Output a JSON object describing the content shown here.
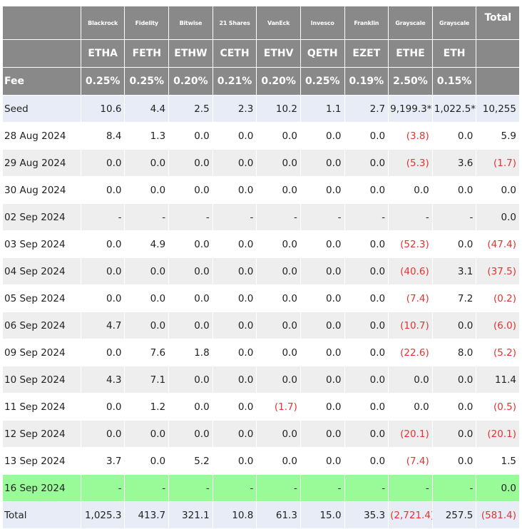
{
  "columns": [
    {
      "issuer": "Blackrock",
      "ticker": "ETHA",
      "fee": "0.25%"
    },
    {
      "issuer": "Fidelity",
      "ticker": "FETH",
      "fee": "0.25%"
    },
    {
      "issuer": "Bitwise",
      "ticker": "ETHW",
      "fee": "0.20%"
    },
    {
      "issuer": "21 Shares",
      "ticker": "CETH",
      "fee": "0.21%"
    },
    {
      "issuer": "VanEck",
      "ticker": "ETHV",
      "fee": "0.20%"
    },
    {
      "issuer": "Invesco",
      "ticker": "QETH",
      "fee": "0.25%"
    },
    {
      "issuer": "Franklin",
      "ticker": "EZET",
      "fee": "0.19%"
    },
    {
      "issuer": "Grayscale",
      "ticker": "ETHE",
      "fee": "2.50%"
    },
    {
      "issuer": "Grayscale",
      "ticker": "ETH",
      "fee": "0.15%"
    }
  ],
  "total_header": "Total",
  "fee_label": "Fee",
  "total_fee": "",
  "rows": [
    {
      "label": "Seed",
      "values": [
        "10.6",
        "4.4",
        "2.5",
        "2.3",
        "10.2",
        "1.1",
        "2.7",
        "9,199.3*",
        "1,022.5*"
      ],
      "total": "10,255",
      "style": "blue"
    },
    {
      "label": "28 Aug 2024",
      "values": [
        "8.4",
        "1.3",
        "0.0",
        "0.0",
        "0.0",
        "0.0",
        "0.0",
        "(3.8)",
        "0.0"
      ],
      "total": "5.9",
      "style": "white"
    },
    {
      "label": "29 Aug 2024",
      "values": [
        "0.0",
        "0.0",
        "0.0",
        "0.0",
        "0.0",
        "0.0",
        "0.0",
        "(5.3)",
        "3.6"
      ],
      "total": "(1.7)",
      "style": "grey"
    },
    {
      "label": "30 Aug 2024",
      "values": [
        "0.0",
        "0.0",
        "0.0",
        "0.0",
        "0.0",
        "0.0",
        "0.0",
        "0.0",
        "0.0"
      ],
      "total": "0.0",
      "style": "white"
    },
    {
      "label": "02 Sep 2024",
      "values": [
        "-",
        "-",
        "-",
        "-",
        "-",
        "-",
        "-",
        "-",
        "-"
      ],
      "total": "0.0",
      "style": "grey"
    },
    {
      "label": "03 Sep 2024",
      "values": [
        "0.0",
        "4.9",
        "0.0",
        "0.0",
        "0.0",
        "0.0",
        "0.0",
        "(52.3)",
        "0.0"
      ],
      "total": "(47.4)",
      "style": "white"
    },
    {
      "label": "04 Sep 2024",
      "values": [
        "0.0",
        "0.0",
        "0.0",
        "0.0",
        "0.0",
        "0.0",
        "0.0",
        "(40.6)",
        "3.1"
      ],
      "total": "(37.5)",
      "style": "grey"
    },
    {
      "label": "05 Sep 2024",
      "values": [
        "0.0",
        "0.0",
        "0.0",
        "0.0",
        "0.0",
        "0.0",
        "0.0",
        "(7.4)",
        "7.2"
      ],
      "total": "(0.2)",
      "style": "white"
    },
    {
      "label": "06 Sep 2024",
      "values": [
        "4.7",
        "0.0",
        "0.0",
        "0.0",
        "0.0",
        "0.0",
        "0.0",
        "(10.7)",
        "0.0"
      ],
      "total": "(6.0)",
      "style": "grey"
    },
    {
      "label": "09 Sep 2024",
      "values": [
        "0.0",
        "7.6",
        "1.8",
        "0.0",
        "0.0",
        "0.0",
        "0.0",
        "(22.6)",
        "8.0"
      ],
      "total": "(5.2)",
      "style": "white"
    },
    {
      "label": "10 Sep 2024",
      "values": [
        "4.3",
        "7.1",
        "0.0",
        "0.0",
        "0.0",
        "0.0",
        "0.0",
        "0.0",
        "0.0"
      ],
      "total": "11.4",
      "style": "grey"
    },
    {
      "label": "11 Sep 2024",
      "values": [
        "0.0",
        "1.2",
        "0.0",
        "0.0",
        "(1.7)",
        "0.0",
        "0.0",
        "0.0",
        "0.0"
      ],
      "total": "(0.5)",
      "style": "white"
    },
    {
      "label": "12 Sep 2024",
      "values": [
        "0.0",
        "0.0",
        "0.0",
        "0.0",
        "0.0",
        "0.0",
        "0.0",
        "(20.1)",
        "0.0"
      ],
      "total": "(20.1)",
      "style": "grey"
    },
    {
      "label": "13 Sep 2024",
      "values": [
        "3.7",
        "0.0",
        "5.2",
        "0.0",
        "0.0",
        "0.0",
        "0.0",
        "(7.4)",
        "0.0"
      ],
      "total": "1.5",
      "style": "white"
    },
    {
      "label": "16 Sep 2024",
      "values": [
        "-",
        "-",
        "-",
        "-",
        "-",
        "-",
        "-",
        "-",
        "-"
      ],
      "total": "0.0",
      "style": "green"
    },
    {
      "label": "Total",
      "values": [
        "1,025.3",
        "413.7",
        "321.1",
        "10.8",
        "61.3",
        "15.0",
        "35.3",
        "(2,721.4)",
        "257.5"
      ],
      "total": "(581.4)",
      "style": "blue"
    }
  ],
  "colors": {
    "header_bg": "#898989",
    "header_text": "#ffffff",
    "row_blue": "#e8ecf6",
    "row_grey": "#eeeeee",
    "row_white": "#ffffff",
    "row_highlight": "#98fb98",
    "negative_text": "#e8312f"
  }
}
